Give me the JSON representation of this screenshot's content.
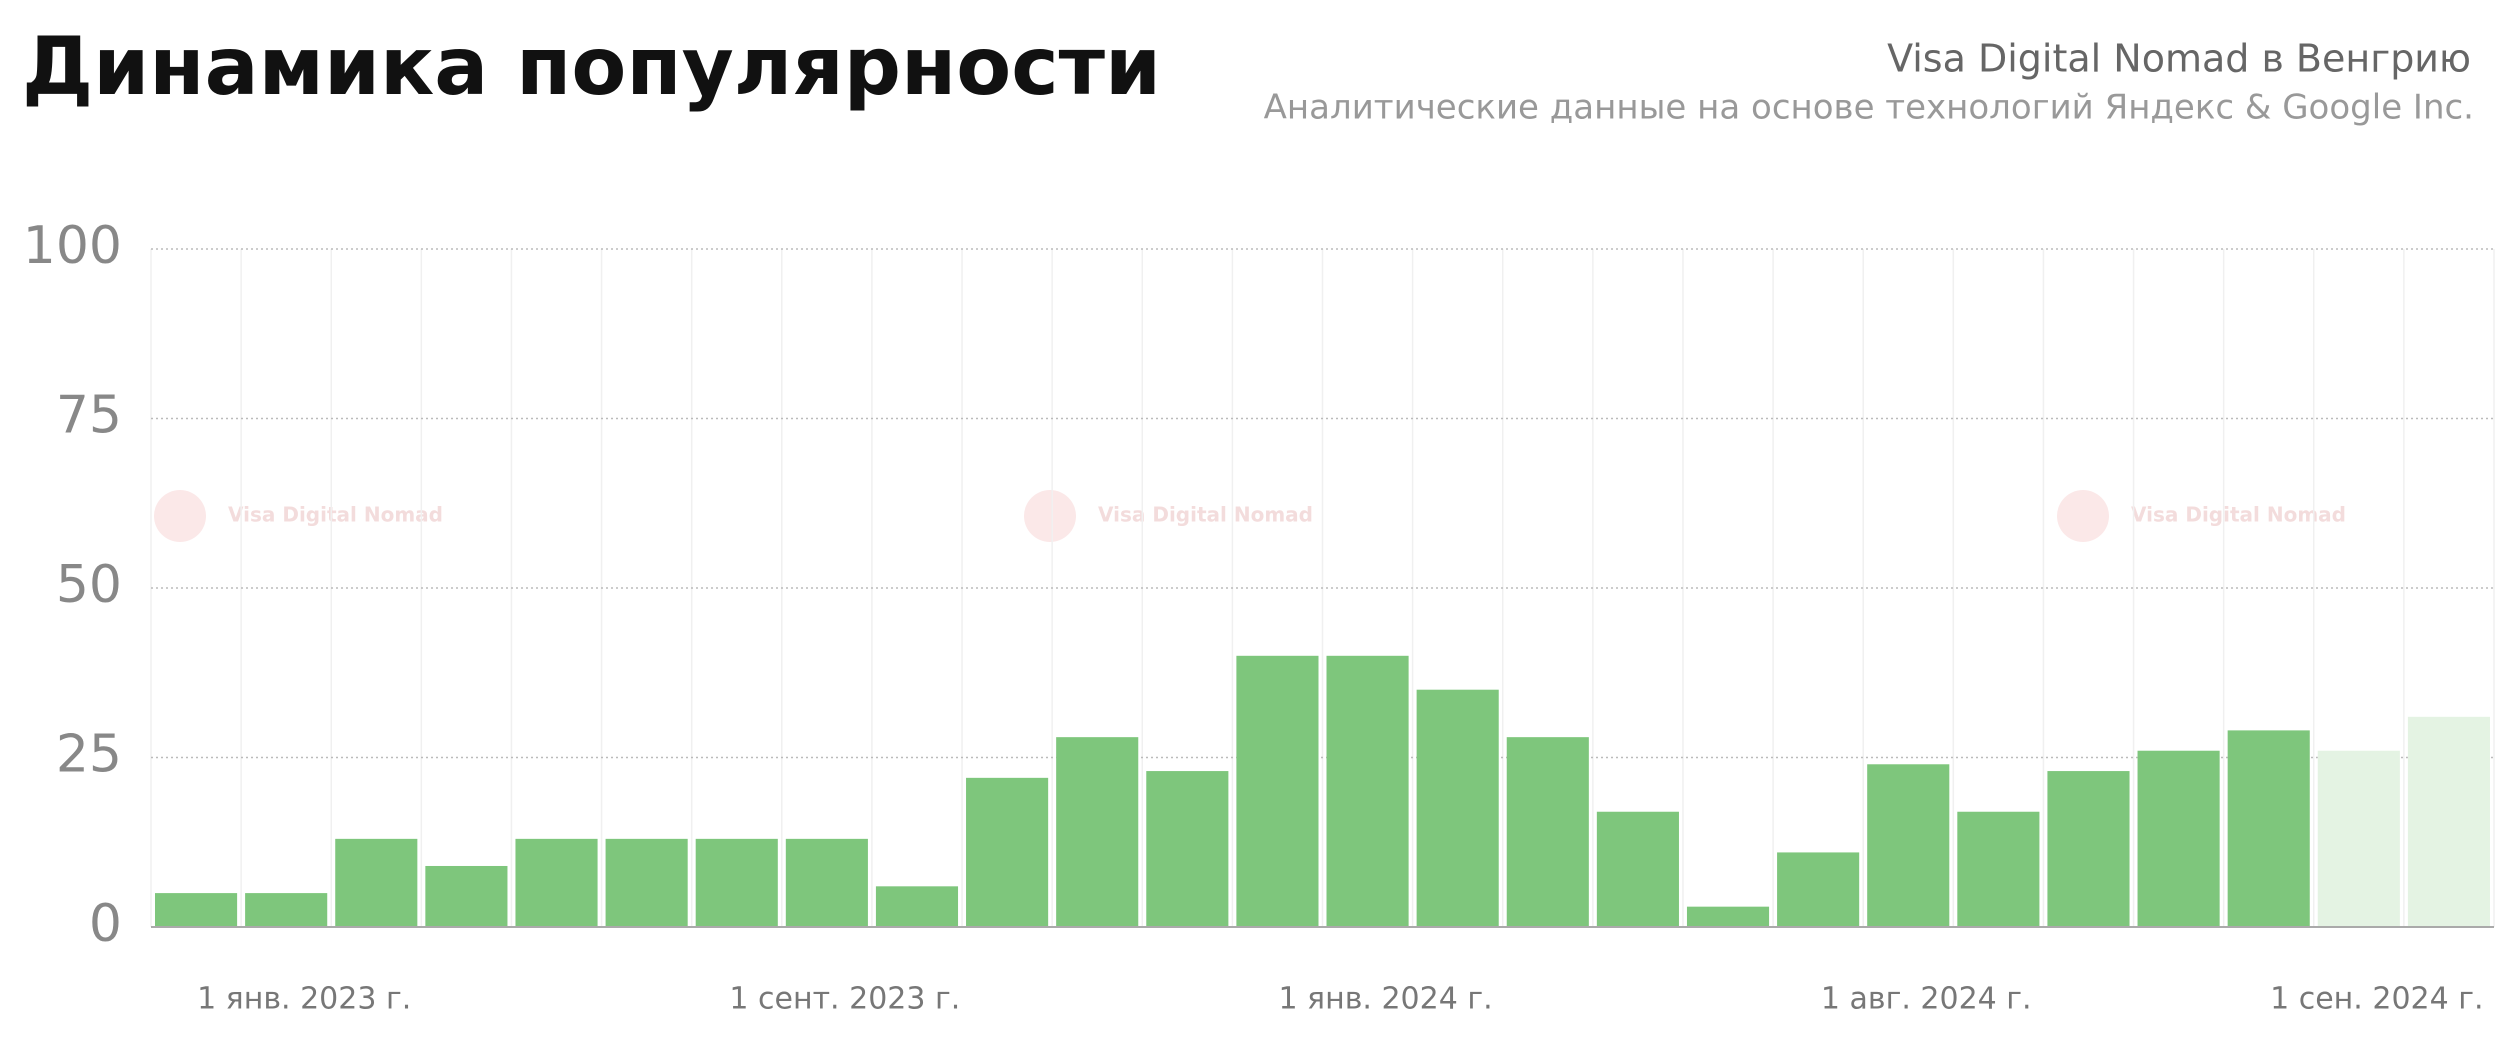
{
  "chart_data": {
    "type": "bar",
    "title": "Динамика популярности",
    "subtitle": "Visa Digital Nomad в Венгрию",
    "caption": "Аналитические данные на основе технологий Яндекс & Google Inc.",
    "watermark": "Visa Digital Nomad",
    "categories": [
      null,
      "1 янв. 2023 г.",
      null,
      null,
      null,
      null,
      null,
      "1 сент. 2023 г.",
      null,
      null,
      null,
      null,
      null,
      "1 янв. 2024 г.",
      null,
      null,
      null,
      null,
      null,
      "1 авг. 2024 г.",
      null,
      null,
      null,
      null,
      "1 сен. 2024 г.",
      null
    ],
    "values": [
      5,
      5,
      13,
      9,
      13,
      13,
      13,
      13,
      6,
      22,
      28,
      23,
      40,
      40,
      35,
      28,
      17,
      3,
      11,
      24,
      17,
      23,
      26,
      29,
      26,
      31
    ],
    "colors": [
      "#7ec67c",
      "#7ec67c",
      "#7ec67c",
      "#7ec67c",
      "#7ec67c",
      "#7ec67c",
      "#7ec67c",
      "#7ec67c",
      "#7ec67c",
      "#7ec67c",
      "#7ec67c",
      "#7ec67c",
      "#7ec67c",
      "#7ec67c",
      "#7ec67c",
      "#7ec67c",
      "#7ec67c",
      "#7ec67c",
      "#7ec67c",
      "#7ec67c",
      "#7ec67c",
      "#7ec67c",
      "#7ec67c",
      "#7ec67c",
      "#e4f3e3",
      "#e4f3e3"
    ],
    "ylim": [
      0,
      100
    ],
    "yticks": [
      0,
      25,
      50,
      75,
      100
    ],
    "grid": true
  }
}
